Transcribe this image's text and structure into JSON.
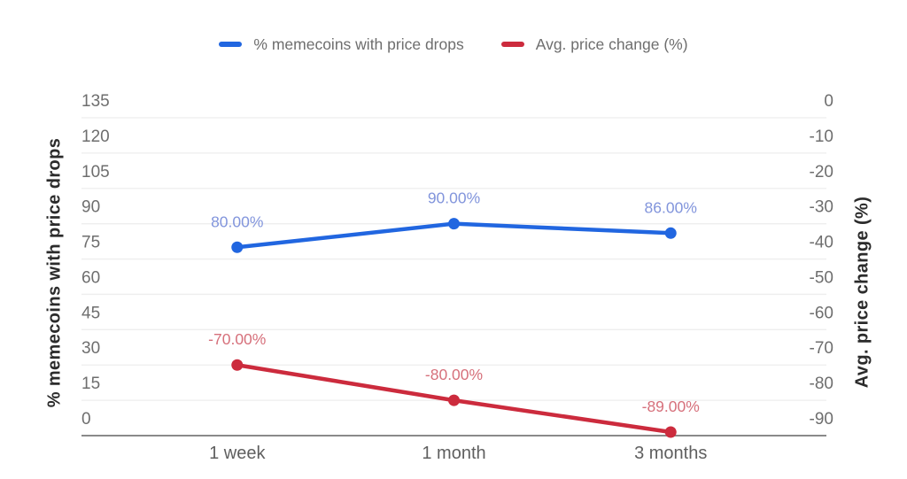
{
  "chart_data": {
    "type": "line",
    "categories": [
      "1 week",
      "1 month",
      "3 months"
    ],
    "series": [
      {
        "name": "% memecoins with price drops",
        "axis": "left_axis",
        "color": "#2166e0",
        "label_color": "#8295dc",
        "values": [
          80,
          90,
          86
        ],
        "point_labels": [
          "80.00%",
          "90.00%",
          "86.00%"
        ]
      },
      {
        "name": "Avg. price change (%)",
        "axis": "right_axis",
        "color": "#cc2b3d",
        "label_color": "#d6707b",
        "values": [
          -70,
          -80,
          -89
        ],
        "point_labels": [
          "-70.00%",
          "-80.00%",
          "-89.00%"
        ]
      }
    ],
    "left_axis": {
      "title": "% memecoins with price drops",
      "ticks": [
        135,
        120,
        105,
        90,
        75,
        60,
        45,
        30,
        15,
        0
      ],
      "min": 0,
      "max": 135
    },
    "right_axis": {
      "title": "Avg. price change (%)",
      "ticks": [
        0,
        -10,
        -20,
        -30,
        -40,
        -50,
        -60,
        -70,
        -80,
        -90
      ],
      "min": -90,
      "max": 0
    },
    "grid": true,
    "legend_position": "top",
    "background": "#ffffff",
    "grid_color": "#eeeeee",
    "axis_line_color": "#8a8a8a",
    "tick_color": "#6e6e6e",
    "x_label_color": "#5f5f5f",
    "axis_title_color": "#2b2b2b"
  }
}
